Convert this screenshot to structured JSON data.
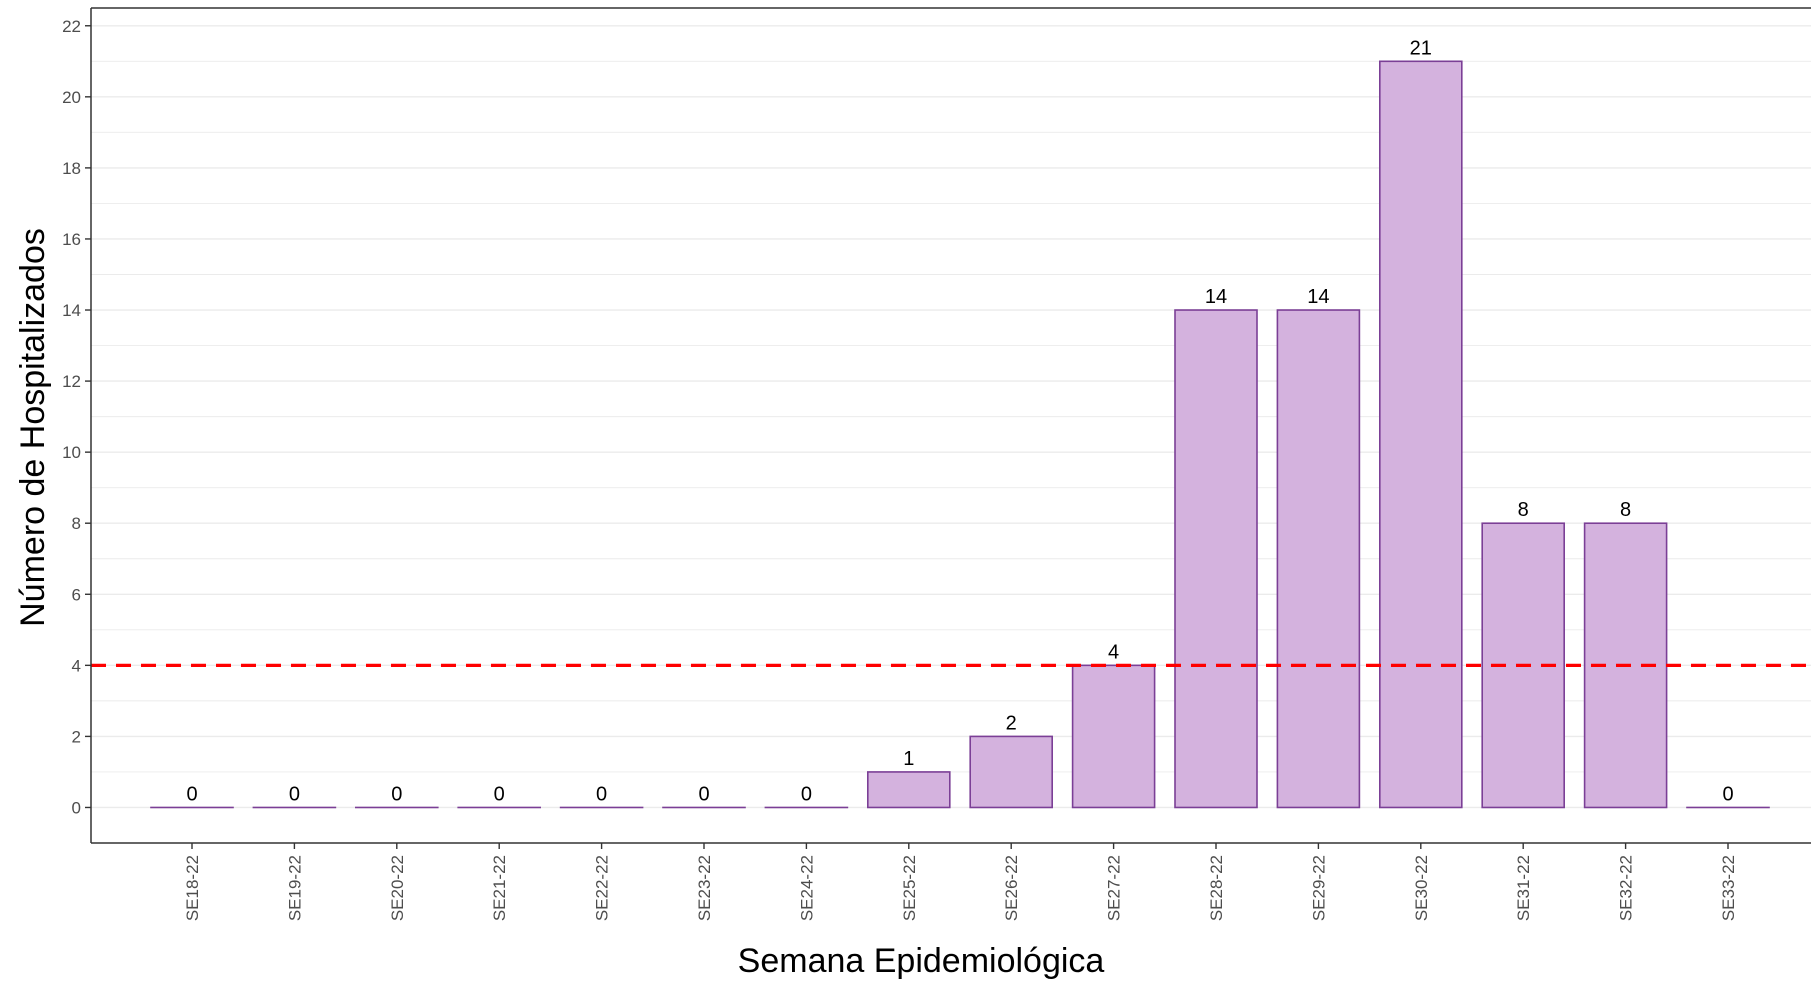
{
  "chart_data": {
    "type": "bar",
    "title": "",
    "xlabel": "Semana Epidemiológica",
    "ylabel": "Número de Hospitalizados",
    "categories": [
      "SE18-22",
      "SE19-22",
      "SE20-22",
      "SE21-22",
      "SE22-22",
      "SE23-22",
      "SE24-22",
      "SE25-22",
      "SE26-22",
      "SE27-22",
      "SE28-22",
      "SE29-22",
      "SE30-22",
      "SE31-22",
      "SE32-22",
      "SE33-22"
    ],
    "values": [
      0,
      0,
      0,
      0,
      0,
      0,
      0,
      1,
      2,
      4,
      14,
      14,
      21,
      8,
      8,
      0
    ],
    "data_labels": [
      "0",
      "0",
      "0",
      "0",
      "0",
      "0",
      "0",
      "1",
      "2",
      "4",
      "14",
      "14",
      "21",
      "8",
      "8",
      "0"
    ],
    "ylim": [
      -1,
      22.5
    ],
    "yticks": [
      0,
      2,
      4,
      6,
      8,
      10,
      12,
      14,
      16,
      18,
      20,
      22
    ],
    "ytick_labels": [
      "0",
      "2",
      "4",
      "6",
      "8",
      "10",
      "12",
      "14",
      "16",
      "18",
      "20",
      "22"
    ],
    "threshold": 4,
    "grid": true,
    "legend": "none",
    "colors": {
      "bar_fill": "#d4b2de",
      "bar_stroke": "#7b3f96",
      "threshold_line": "#ff0000",
      "grid": "#ebebeb",
      "axis": "#333333"
    }
  }
}
